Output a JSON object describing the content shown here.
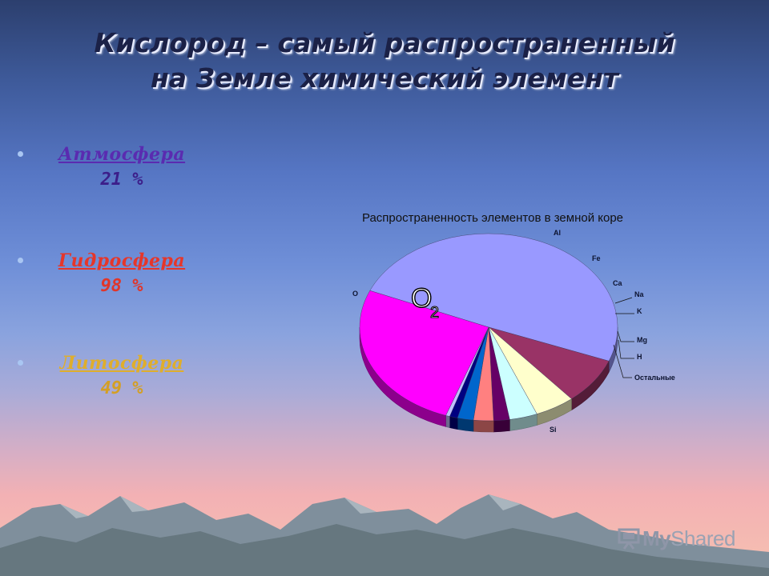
{
  "slide": {
    "title_line1": "Кислород – самый распространенный",
    "title_line2": "на Земле химический элемент"
  },
  "bullets": [
    {
      "label": "Атмосфера",
      "value": "21 %",
      "color": "#5a2bb0"
    },
    {
      "label": "Гидросфера",
      "value": "98 %",
      "color": "#e6362a"
    },
    {
      "label": "Литосфера",
      "value": "49 %",
      "color": "#dfae2c"
    }
  ],
  "chart_data": {
    "type": "pie",
    "title": "Распространенность элементов в земной коре",
    "overlay_label": "O",
    "overlay_subscript": "2",
    "labels": [
      "O",
      "Al",
      "Fe",
      "Ca",
      "Na",
      "K",
      "Mg",
      "H",
      "Остальные",
      "Si"
    ],
    "values": [
      49.5,
      8.0,
      5.0,
      3.5,
      2.0,
      2.5,
      2.0,
      1.0,
      0.5,
      26.0
    ],
    "colors": [
      "#9999ff",
      "#993366",
      "#ffffcc",
      "#ccffff",
      "#660066",
      "#ff8080",
      "#0066cc",
      "#000080",
      "#c0c0ff",
      "#ff00ff"
    ],
    "three_d": true,
    "legend": "none"
  },
  "logo": {
    "text_a": "My",
    "text_b": "Shared"
  }
}
